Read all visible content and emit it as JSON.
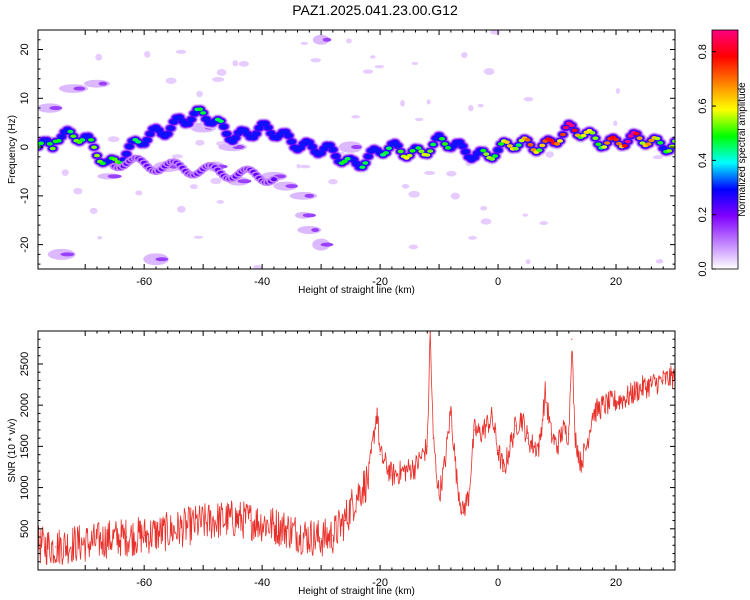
{
  "title": "PAZ1.2025.041.23.00.G12",
  "chart_data": [
    {
      "type": "heatmap",
      "xlabel": "Height of straight line (km)",
      "ylabel": "Frequency (Hz)",
      "xlim": [
        -78,
        30
      ],
      "ylim": [
        -25,
        24
      ],
      "xticks": [
        -60,
        -40,
        -20,
        0,
        20
      ],
      "yticks": [
        -20,
        -10,
        0,
        10,
        20
      ],
      "colorbar": {
        "label": "Normalized spectral amplitude",
        "range": [
          0,
          0.88
        ],
        "ticks": [
          0.0,
          0.2,
          0.4,
          0.6,
          0.8
        ],
        "colors": [
          "#ffffff",
          "#c080ff",
          "#8000ff",
          "#0000ff",
          "#00ffff",
          "#00ff00",
          "#ffff00",
          "#ff8000",
          "#ff0000",
          "#ff0080"
        ]
      },
      "ridge": [
        {
          "x": -75,
          "y": 3,
          "amp": 0.45
        },
        {
          "x": -70,
          "y": 1,
          "amp": 0.5
        },
        {
          "x": -66,
          "y": -3,
          "amp": 0.5
        },
        {
          "x": -60,
          "y": 1,
          "amp": 0.4
        },
        {
          "x": -54,
          "y": 6,
          "amp": 0.35
        },
        {
          "x": -50,
          "y": 6,
          "amp": 0.45
        },
        {
          "x": -45,
          "y": 3,
          "amp": 0.4
        },
        {
          "x": -40,
          "y": 3,
          "amp": 0.3
        },
        {
          "x": -35,
          "y": 2,
          "amp": 0.3
        },
        {
          "x": -30,
          "y": -1,
          "amp": 0.4
        },
        {
          "x": -25,
          "y": -3,
          "amp": 0.45
        },
        {
          "x": -20,
          "y": -1,
          "amp": 0.4
        },
        {
          "x": -15,
          "y": -1,
          "amp": 0.55
        },
        {
          "x": -10,
          "y": 1,
          "amp": 0.5
        },
        {
          "x": -6,
          "y": -1,
          "amp": 0.35
        },
        {
          "x": -2,
          "y": -1,
          "amp": 0.5
        },
        {
          "x": 3,
          "y": 0,
          "amp": 0.6
        },
        {
          "x": 8,
          "y": 1,
          "amp": 0.7
        },
        {
          "x": 12,
          "y": 3,
          "amp": 0.85
        },
        {
          "x": 16,
          "y": 2,
          "amp": 0.5
        },
        {
          "x": 22,
          "y": 1,
          "amp": 0.88
        },
        {
          "x": 27,
          "y": 1,
          "amp": 0.55
        },
        {
          "x": 30,
          "y": 1,
          "amp": 0.5
        }
      ]
    },
    {
      "type": "line",
      "xlabel": "Height of straight line (km)",
      "ylabel": "SNR (10 * v/v)",
      "xlim": [
        -78,
        30
      ],
      "ylim": [
        0,
        2900
      ],
      "xticks": [
        -60,
        -40,
        -20,
        0,
        20
      ],
      "yticks": [
        500,
        1000,
        1500,
        2000,
        2500
      ],
      "color": "#e8302a",
      "x": [
        -78,
        -75,
        -72,
        -69,
        -66,
        -63,
        -60,
        -57,
        -54,
        -51,
        -48,
        -45,
        -42,
        -39,
        -36,
        -33,
        -30,
        -28,
        -26,
        -24,
        -22,
        -20.5,
        -20,
        -18,
        -16,
        -14,
        -12,
        -11.5,
        -11,
        -10,
        -9,
        -8,
        -7,
        -6,
        -5,
        -4,
        -3,
        -2,
        -1,
        0,
        1,
        2,
        3,
        4,
        5,
        6,
        7,
        8,
        9,
        10,
        11,
        12,
        12.5,
        13,
        14,
        15,
        16,
        17,
        18,
        20,
        22,
        24,
        26,
        28,
        30
      ],
      "values": [
        300,
        280,
        320,
        330,
        380,
        400,
        420,
        450,
        500,
        560,
        600,
        620,
        600,
        560,
        500,
        420,
        380,
        420,
        600,
        900,
        1100,
        1950,
        1400,
        1150,
        1200,
        1250,
        1500,
        2880,
        1600,
        900,
        1300,
        1950,
        1100,
        700,
        900,
        1700,
        1650,
        1750,
        1850,
        1450,
        1200,
        1500,
        1750,
        1850,
        1600,
        1500,
        1500,
        2150,
        1650,
        1500,
        1700,
        1650,
        2800,
        1650,
        1300,
        1500,
        1900,
        1950,
        2000,
        2050,
        2100,
        2200,
        2250,
        2300,
        2350
      ]
    }
  ]
}
